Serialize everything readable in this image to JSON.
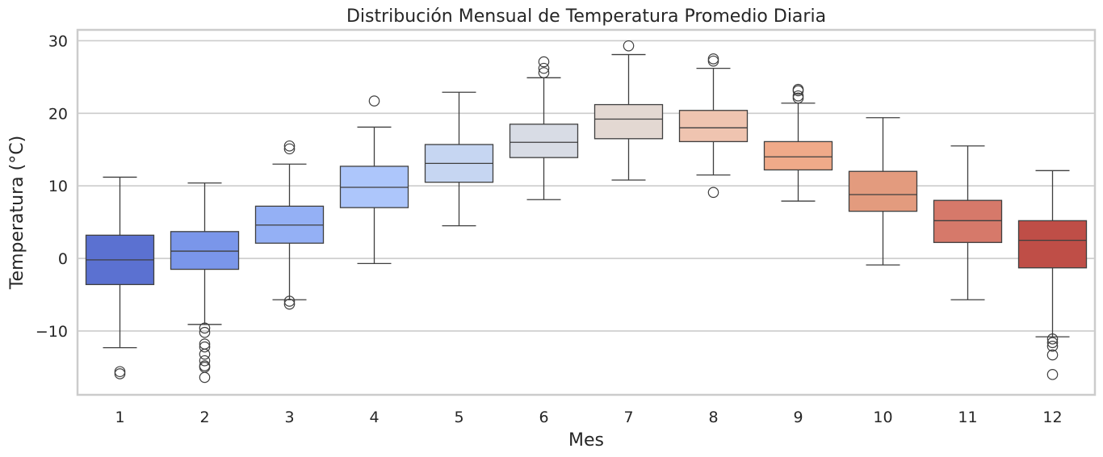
{
  "chart_data": {
    "type": "box",
    "title": "Distribución Mensual de Temperatura Promedio Diaria",
    "xlabel": "Mes",
    "ylabel": "Temperatura (°C)",
    "ylim": [
      -18.8,
      31.5
    ],
    "yticks": [
      -10,
      0,
      10,
      20,
      30
    ],
    "ytick_labels": [
      "−10",
      "0",
      "10",
      "20",
      "30"
    ],
    "grid": true,
    "categories": [
      "1",
      "2",
      "3",
      "4",
      "5",
      "6",
      "7",
      "8",
      "9",
      "10",
      "11",
      "12"
    ],
    "colors": [
      "#5b71d1",
      "#7a96ea",
      "#94b0f5",
      "#adc6fb",
      "#c6d6f2",
      "#d8dce5",
      "#e3d8d2",
      "#efc4b0",
      "#f0aa89",
      "#e39b7e",
      "#d6796a",
      "#bf4e47"
    ],
    "boxes": [
      {
        "month": "1",
        "whislo": -12.3,
        "q1": -3.6,
        "med": -0.2,
        "q3": 3.2,
        "whishi": 11.2,
        "fliers": [
          -15.6,
          -15.9
        ]
      },
      {
        "month": "2",
        "whislo": -9.1,
        "q1": -1.5,
        "med": 1.0,
        "q3": 3.7,
        "whishi": 10.4,
        "fliers": [
          -9.6,
          -10.2,
          -11.8,
          -12.2,
          -13.2,
          -14.1,
          -14.8,
          -15.0,
          -16.4
        ]
      },
      {
        "month": "3",
        "whislo": -5.7,
        "q1": 2.1,
        "med": 4.6,
        "q3": 7.2,
        "whishi": 13.0,
        "fliers": [
          15.1,
          15.5,
          -5.9,
          -6.3
        ]
      },
      {
        "month": "4",
        "whislo": -0.7,
        "q1": 7.0,
        "med": 9.8,
        "q3": 12.7,
        "whishi": 18.1,
        "fliers": [
          21.7
        ]
      },
      {
        "month": "5",
        "whislo": 4.5,
        "q1": 10.5,
        "med": 13.1,
        "q3": 15.7,
        "whishi": 22.9,
        "fliers": []
      },
      {
        "month": "6",
        "whislo": 8.1,
        "q1": 13.9,
        "med": 16.0,
        "q3": 18.5,
        "whishi": 24.9,
        "fliers": [
          25.6,
          26.2,
          27.1
        ]
      },
      {
        "month": "7",
        "whislo": 10.8,
        "q1": 16.5,
        "med": 19.2,
        "q3": 21.2,
        "whishi": 28.1,
        "fliers": [
          29.3
        ]
      },
      {
        "month": "8",
        "whislo": 11.5,
        "q1": 16.1,
        "med": 18.0,
        "q3": 20.4,
        "whishi": 26.2,
        "fliers": [
          27.2,
          27.5,
          9.1
        ]
      },
      {
        "month": "9",
        "whislo": 7.9,
        "q1": 12.2,
        "med": 14.0,
        "q3": 16.1,
        "whishi": 21.4,
        "fliers": [
          22.1,
          22.4,
          23.1,
          23.3
        ]
      },
      {
        "month": "10",
        "whislo": -0.9,
        "q1": 6.5,
        "med": 8.8,
        "q3": 12.0,
        "whishi": 19.4,
        "fliers": []
      },
      {
        "month": "11",
        "whislo": -5.7,
        "q1": 2.2,
        "med": 5.2,
        "q3": 8.0,
        "whishi": 15.5,
        "fliers": []
      },
      {
        "month": "12",
        "whislo": -10.8,
        "q1": -1.3,
        "med": 2.5,
        "q3": 5.2,
        "whishi": 12.1,
        "fliers": [
          -11.1,
          -11.6,
          -12.1,
          -13.3,
          -16.0
        ]
      }
    ]
  }
}
